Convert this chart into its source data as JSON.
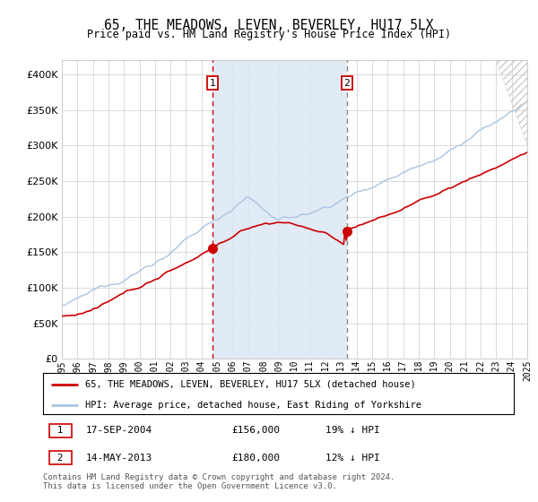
{
  "title": "65, THE MEADOWS, LEVEN, BEVERLEY, HU17 5LX",
  "subtitle": "Price paid vs. HM Land Registry's House Price Index (HPI)",
  "legend_line1": "65, THE MEADOWS, LEVEN, BEVERLEY, HU17 5LX (detached house)",
  "legend_line2": "HPI: Average price, detached house, East Riding of Yorkshire",
  "footnote": "Contains HM Land Registry data © Crown copyright and database right 2024.\nThis data is licensed under the Open Government Licence v3.0.",
  "purchase1_date": "17-SEP-2004",
  "purchase1_price": 156000,
  "purchase1_label": "19% ↓ HPI",
  "purchase1_year": 2004.708,
  "purchase2_date": "14-MAY-2013",
  "purchase2_price": 180000,
  "purchase2_label": "12% ↓ HPI",
  "purchase2_year": 2013.375,
  "hpi_color": "#a8c4e0",
  "price_color": "#cc0000",
  "highlight_color": "#dce8f5",
  "grid_color": "#cccccc",
  "ylim": [
    0,
    420000
  ],
  "yticks": [
    0,
    50000,
    100000,
    150000,
    200000,
    250000,
    300000,
    350000,
    400000
  ],
  "year_start": 1995,
  "year_end": 2025
}
